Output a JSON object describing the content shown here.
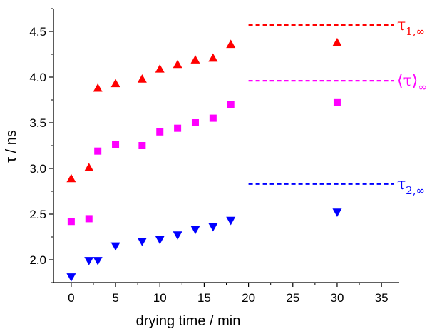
{
  "chart_data": {
    "type": "scatter",
    "title": "",
    "xlabel": "drying time / min",
    "ylabel": "τ / ns",
    "xlim": [
      -2,
      37
    ],
    "ylim": [
      1.75,
      4.75
    ],
    "xticks": [
      0,
      5,
      10,
      15,
      20,
      25,
      30,
      35
    ],
    "yticks": [
      2.0,
      2.5,
      3.0,
      3.5,
      4.0,
      4.5
    ],
    "ytick_labels": [
      "2.0",
      "2.5",
      "3.0",
      "3.5",
      "4.0",
      "4.5"
    ],
    "grid": false,
    "series": [
      {
        "name": "τ1",
        "marker": "triangle-up",
        "color": "#ff0000",
        "x": [
          0,
          2,
          3,
          5,
          8,
          10,
          12,
          14,
          16,
          18,
          30
        ],
        "y": [
          2.89,
          3.01,
          3.88,
          3.93,
          3.98,
          4.09,
          4.14,
          4.19,
          4.21,
          4.36,
          4.38
        ]
      },
      {
        "name": "⟨τ⟩",
        "marker": "square",
        "color": "#ff00ff",
        "x": [
          0,
          2,
          3,
          5,
          8,
          10,
          12,
          14,
          16,
          18,
          30
        ],
        "y": [
          2.42,
          2.45,
          3.19,
          3.26,
          3.25,
          3.4,
          3.44,
          3.5,
          3.55,
          3.7,
          3.72
        ]
      },
      {
        "name": "τ2",
        "marker": "triangle-down",
        "color": "#0000ff",
        "x": [
          0,
          2,
          3,
          5,
          8,
          10,
          12,
          14,
          16,
          18,
          30
        ],
        "y": [
          1.81,
          1.99,
          1.99,
          2.15,
          2.2,
          2.22,
          2.27,
          2.33,
          2.36,
          2.43,
          2.52
        ]
      }
    ],
    "reference_lines": [
      {
        "id": "tau1-inf",
        "y": 4.57,
        "x_start": 20,
        "x_end": 37,
        "color": "#ff0000",
        "label_main": "τ",
        "label_sub": "1,∞"
      },
      {
        "id": "tau-avg-inf",
        "y": 3.96,
        "x_start": 20,
        "x_end": 37,
        "color": "#ff00ff",
        "label_main": "⟨τ⟩",
        "label_sub": "∞"
      },
      {
        "id": "tau2-inf",
        "y": 2.83,
        "x_start": 20,
        "x_end": 37,
        "color": "#0000ff",
        "label_main": "τ",
        "label_sub": "2,∞"
      }
    ]
  }
}
